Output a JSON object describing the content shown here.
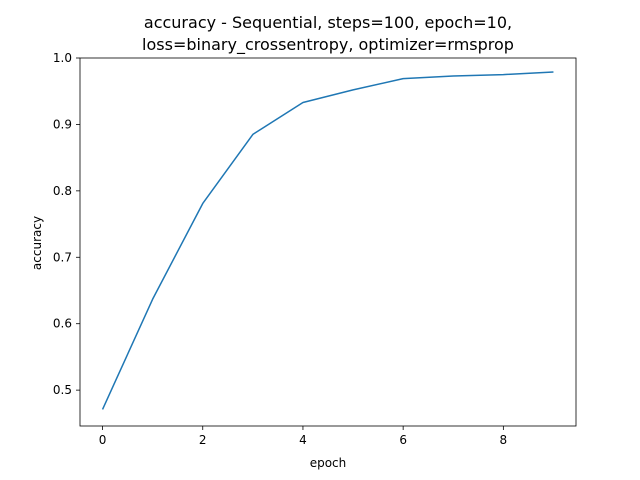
{
  "chart_data": {
    "type": "line",
    "title_lines": [
      "accuracy - Sequential, steps=100, epoch=10,",
      "loss=binary_crossentropy, optimizer=rmsprop"
    ],
    "xlabel": "epoch",
    "ylabel": "accuracy",
    "xlim": [
      -0.45,
      9.45
    ],
    "ylim": [
      0.446,
      1.0
    ],
    "xticks": [
      0,
      2,
      4,
      6,
      8
    ],
    "xtick_labels": [
      "0",
      "2",
      "4",
      "6",
      "8"
    ],
    "yticks": [
      0.5,
      0.6,
      0.7,
      0.8,
      0.9,
      1.0
    ],
    "ytick_labels": [
      "0.5",
      "0.6",
      "0.7",
      "0.8",
      "0.9",
      "1.0"
    ],
    "grid": false,
    "series": [
      {
        "color": "#1f77b4",
        "x": [
          0,
          1,
          2,
          3,
          4,
          5,
          6,
          7,
          8,
          9
        ],
        "y": [
          0.471,
          0.637,
          0.781,
          0.885,
          0.933,
          0.952,
          0.969,
          0.973,
          0.975,
          0.979
        ]
      }
    ]
  }
}
